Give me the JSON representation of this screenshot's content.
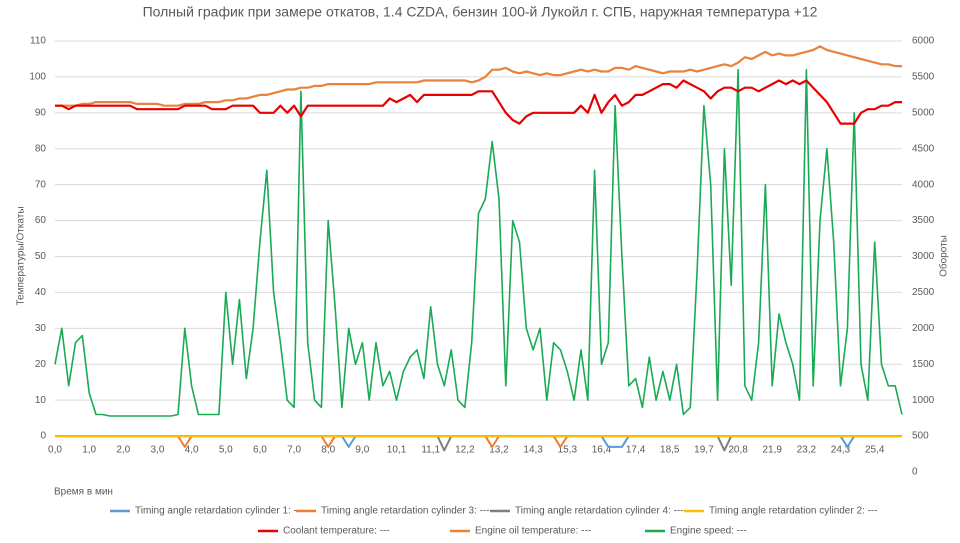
{
  "chart_data": {
    "type": "line",
    "title": "Полный график при замере откатов, 1.4 CZDA, бензин 100-й Лукойл г. СПБ, наружная температура +12",
    "x_label": "Время в мин",
    "y_label": "Температуры/Откаты",
    "y2_label": "Обороты",
    "categories": [
      "0,0",
      null,
      null,
      null,
      null,
      "1,0",
      null,
      null,
      null,
      null,
      "2,0",
      null,
      null,
      null,
      null,
      "3,0",
      null,
      null,
      null,
      null,
      "4,0",
      null,
      null,
      null,
      null,
      "5,0",
      null,
      null,
      null,
      null,
      "6,0",
      null,
      null,
      null,
      null,
      "7,0",
      null,
      null,
      null,
      null,
      "8,0",
      null,
      null,
      null,
      null,
      "9,0",
      null,
      null,
      null,
      null,
      "10,1",
      null,
      null,
      null,
      null,
      "11,1",
      null,
      null,
      null,
      null,
      "12,2",
      null,
      null,
      null,
      null,
      "13,2",
      null,
      null,
      null,
      null,
      "14,3",
      null,
      null,
      null,
      null,
      "15,3",
      null,
      null,
      null,
      null,
      "16,4",
      null,
      null,
      null,
      null,
      "17,4",
      null,
      null,
      null,
      null,
      "18,5",
      null,
      null,
      null,
      null,
      "19,7",
      null,
      null,
      null,
      null,
      "20,8",
      null,
      null,
      null,
      null,
      "21,9",
      null,
      null,
      null,
      null,
      "23,2",
      null,
      null,
      null,
      null,
      "24,3",
      null,
      null,
      null,
      null,
      "25,4",
      null,
      null,
      null,
      null
    ],
    "ylim": [
      -10,
      110
    ],
    "yticks": [
      0,
      10,
      20,
      30,
      40,
      50,
      60,
      70,
      80,
      90,
      100,
      110
    ],
    "y2lim": [
      0,
      6000
    ],
    "y2ticks": [
      0,
      500,
      1000,
      1500,
      2000,
      2500,
      3000,
      3500,
      4000,
      4500,
      5000,
      5500,
      6000
    ],
    "grid": true,
    "series": [
      {
        "name": "Timing angle retardation cylinder 1: ---",
        "color": "#5b9bd5",
        "values": [
          0,
          0,
          0,
          0,
          0,
          0,
          0,
          0,
          0,
          0,
          0,
          0,
          0,
          0,
          0,
          0,
          0,
          0,
          0,
          0,
          0,
          0,
          0,
          0,
          0,
          0,
          0,
          0,
          0,
          0,
          0,
          0,
          0,
          0,
          0,
          0,
          0,
          0,
          0,
          0,
          0,
          0,
          0,
          -3,
          0,
          0,
          0,
          0,
          0,
          0,
          0,
          0,
          0,
          0,
          0,
          0,
          0,
          0,
          0,
          0,
          0,
          0,
          0,
          0,
          0,
          0,
          0,
          0,
          0,
          0,
          0,
          0,
          0,
          0,
          0,
          0,
          0,
          0,
          0,
          0,
          0,
          -3,
          -3,
          -3,
          0,
          0,
          0,
          0,
          0,
          0,
          0,
          0,
          0,
          0,
          0,
          0,
          0,
          0,
          0,
          0,
          0,
          0,
          0,
          0,
          0,
          0,
          0,
          0,
          0,
          0,
          0,
          0,
          0,
          0,
          0,
          0,
          -3,
          0,
          0,
          0,
          0,
          0,
          0,
          0,
          0
        ]
      },
      {
        "name": "Timing angle retardation cylinder 3: ---",
        "color": "#ed7d31",
        "values": [
          0,
          0,
          0,
          0,
          0,
          0,
          0,
          0,
          0,
          0,
          0,
          0,
          0,
          0,
          0,
          0,
          0,
          0,
          0,
          -3,
          0,
          0,
          0,
          0,
          0,
          0,
          0,
          0,
          0,
          0,
          0,
          0,
          0,
          0,
          0,
          0,
          0,
          0,
          0,
          0,
          -3,
          0,
          0,
          0,
          0,
          0,
          0,
          0,
          0,
          0,
          0,
          0,
          0,
          0,
          0,
          0,
          0,
          0,
          0,
          0,
          0,
          0,
          0,
          0,
          -3,
          0,
          0,
          0,
          0,
          0,
          0,
          0,
          0,
          0,
          -3,
          0,
          0,
          0,
          0,
          0,
          0,
          0,
          0,
          0,
          0,
          0,
          0,
          0,
          0,
          0,
          0,
          0,
          0,
          0,
          0,
          0,
          0,
          0,
          0,
          0,
          0,
          0,
          0,
          0,
          0,
          0,
          0,
          0,
          0,
          0,
          0,
          0,
          0,
          0,
          0,
          0,
          0,
          0,
          0,
          0,
          0,
          0,
          0,
          0,
          0
        ]
      },
      {
        "name": "Timing angle retardation cylinder 4: ---",
        "color": "#7f7f7f",
        "values": [
          0,
          0,
          0,
          0,
          0,
          0,
          0,
          0,
          0,
          0,
          0,
          0,
          0,
          0,
          0,
          0,
          0,
          0,
          0,
          0,
          0,
          0,
          0,
          0,
          0,
          0,
          0,
          0,
          0,
          0,
          0,
          0,
          0,
          0,
          0,
          0,
          0,
          0,
          0,
          0,
          0,
          0,
          0,
          0,
          0,
          0,
          0,
          0,
          0,
          0,
          0,
          0,
          0,
          0,
          0,
          0,
          0,
          -4,
          0,
          0,
          0,
          0,
          0,
          0,
          0,
          0,
          0,
          0,
          0,
          0,
          0,
          0,
          0,
          0,
          0,
          0,
          0,
          0,
          0,
          0,
          0,
          0,
          0,
          0,
          0,
          0,
          0,
          0,
          0,
          0,
          0,
          0,
          0,
          0,
          0,
          0,
          0,
          0,
          -4,
          0,
          0,
          0,
          0,
          0,
          0,
          0,
          0,
          0,
          0,
          0,
          0,
          0,
          0,
          0,
          0,
          0,
          0,
          0,
          0,
          0,
          0,
          0,
          0,
          0,
          0
        ]
      },
      {
        "name": "Timing angle retardation cylinder 2: ---",
        "color": "#ffc000",
        "values": [
          0,
          0,
          0,
          0,
          0,
          0,
          0,
          0,
          0,
          0,
          0,
          0,
          0,
          0,
          0,
          0,
          0,
          0,
          0,
          0,
          0,
          0,
          0,
          0,
          0,
          0,
          0,
          0,
          0,
          0,
          0,
          0,
          0,
          0,
          0,
          0,
          0,
          0,
          0,
          0,
          0,
          0,
          0,
          0,
          0,
          0,
          0,
          0,
          0,
          0,
          0,
          0,
          0,
          0,
          0,
          0,
          0,
          0,
          0,
          0,
          0,
          0,
          0,
          0,
          0,
          0,
          0,
          0,
          0,
          0,
          0,
          0,
          0,
          0,
          0,
          0,
          0,
          0,
          0,
          0,
          0,
          0,
          0,
          0,
          0,
          0,
          0,
          0,
          0,
          0,
          0,
          0,
          0,
          0,
          0,
          0,
          0,
          0,
          0,
          0,
          0,
          0,
          0,
          0,
          0,
          0,
          0,
          0,
          0,
          0,
          0,
          0,
          0,
          0,
          0,
          0,
          0,
          0,
          0,
          0,
          0,
          0,
          0,
          0,
          0
        ]
      },
      {
        "name": "Coolant temperature: ---",
        "color": "#e60000",
        "values": [
          92,
          92,
          91,
          92,
          92,
          92,
          92,
          92,
          92,
          92,
          92,
          92,
          91,
          91,
          91,
          91,
          91,
          91,
          91,
          92,
          92,
          92,
          92,
          91,
          91,
          91,
          92,
          92,
          92,
          92,
          90,
          90,
          90,
          92,
          90,
          92,
          89,
          92,
          92,
          92,
          92,
          92,
          92,
          92,
          92,
          92,
          92,
          92,
          92,
          94,
          93,
          94,
          95,
          93,
          95,
          95,
          95,
          95,
          95,
          95,
          95,
          95,
          96,
          96,
          96,
          93,
          90,
          88,
          87,
          89,
          90,
          90,
          90,
          90,
          90,
          90,
          90,
          92,
          90,
          95,
          90,
          93,
          95,
          92,
          93,
          95,
          95,
          96,
          97,
          98,
          98,
          97,
          99,
          98,
          97,
          96,
          94,
          96,
          97,
          97,
          96,
          97,
          97,
          96,
          97,
          98,
          99,
          98,
          99,
          98,
          99,
          97,
          95,
          93,
          90,
          87,
          87,
          87,
          90,
          91,
          91,
          92,
          92,
          93,
          93
        ]
      },
      {
        "name": "Engine oil temperature: ---",
        "color": "#e8823c",
        "values": [
          92,
          92,
          92,
          92,
          92.5,
          92.5,
          93,
          93,
          93,
          93,
          93,
          93,
          92.5,
          92.5,
          92.5,
          92.5,
          92,
          92,
          92,
          92.5,
          92.5,
          92.5,
          93,
          93,
          93,
          93.5,
          93.5,
          94,
          94,
          94.5,
          95,
          95,
          95.5,
          96,
          96.5,
          96.5,
          97,
          97,
          97.5,
          97.5,
          98,
          98,
          98,
          98,
          98,
          98,
          98,
          98.5,
          98.5,
          98.5,
          98.5,
          98.5,
          98.5,
          98.5,
          99,
          99,
          99,
          99,
          99,
          99,
          99,
          98.5,
          99,
          100,
          102,
          102,
          102.5,
          101.5,
          101,
          101.5,
          101,
          100.5,
          101,
          100.5,
          100.5,
          101,
          101.5,
          102,
          101.5,
          102,
          101.5,
          101.5,
          102.5,
          102.5,
          102,
          103,
          102.5,
          102,
          101.5,
          101,
          101.5,
          101.5,
          101.5,
          102,
          101.5,
          102,
          102.5,
          103,
          103.5,
          103,
          104,
          105.5,
          105,
          106,
          107,
          106,
          106.5,
          106,
          106,
          106.5,
          107,
          107.5,
          108.5,
          107.5,
          107,
          106.5,
          106,
          105.5,
          105,
          104.5,
          104,
          103.5,
          103.5,
          103,
          103
        ]
      },
      {
        "name": "Engine speed: ---",
        "color": "#1aaa55",
        "axis": "y2",
        "values": [
          1500,
          2000,
          1200,
          1800,
          1900,
          1100,
          800,
          800,
          780,
          780,
          780,
          780,
          780,
          780,
          780,
          780,
          780,
          780,
          800,
          2000,
          1200,
          800,
          800,
          800,
          800,
          2500,
          1500,
          2400,
          1300,
          2000,
          3200,
          4200,
          2500,
          1800,
          1000,
          900,
          5300,
          1800,
          1000,
          900,
          3500,
          2300,
          900,
          2000,
          1500,
          1800,
          1000,
          1800,
          1200,
          1400,
          1000,
          1400,
          1600,
          1700,
          1300,
          2300,
          1500,
          1200,
          1700,
          1000,
          900,
          1800,
          3600,
          3800,
          4600,
          3800,
          1200,
          3500,
          3200,
          2000,
          1700,
          2000,
          1000,
          1800,
          1700,
          1400,
          1000,
          1700,
          1000,
          4200,
          1500,
          1800,
          5100,
          3000,
          1200,
          1300,
          900,
          1600,
          1000,
          1400,
          1000,
          1500,
          800,
          900,
          2800,
          5100,
          4000,
          1000,
          4500,
          2600,
          5600,
          1200,
          1000,
          1800,
          4000,
          1200,
          2200,
          1800,
          1500,
          1000,
          5600,
          1200,
          3500,
          4500,
          3200,
          1200,
          2000,
          5000,
          1500,
          1000,
          3200,
          1500,
          1200,
          1200,
          800
        ]
      }
    ]
  }
}
